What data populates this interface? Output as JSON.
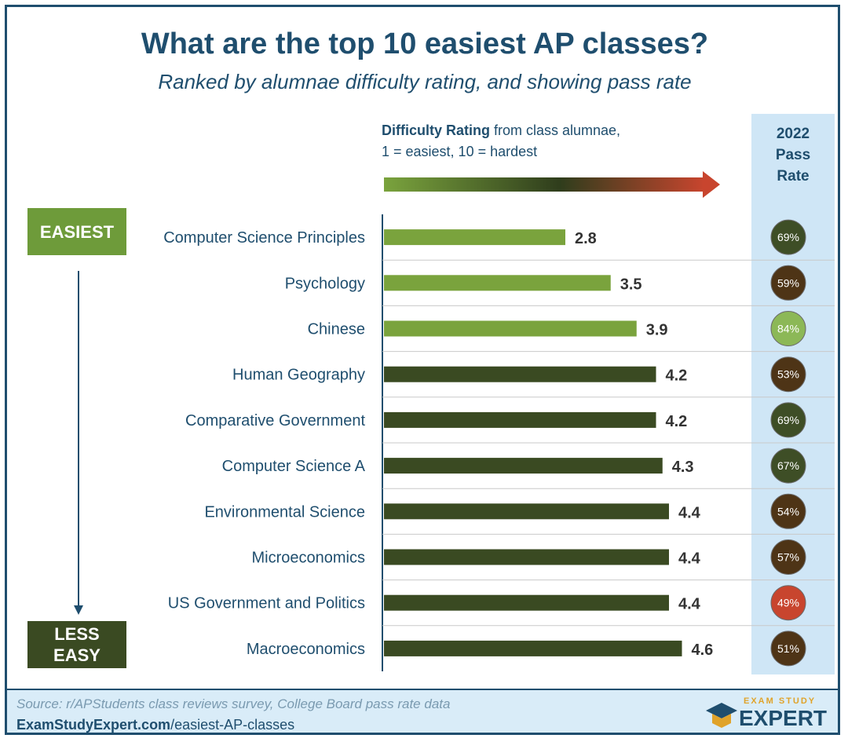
{
  "title": "What are the top 10 easiest AP classes?",
  "subtitle": "Ranked by alumnae difficulty rating, and showing pass rate",
  "legend": {
    "bold": "Difficulty Rating",
    "rest": " from class alumnae,",
    "line2": "1 = easiest, 10 = hardest"
  },
  "pass_header": [
    "2022",
    "Pass",
    "Rate"
  ],
  "tags": {
    "easiest": "EASIEST",
    "less_easy_1": "LESS",
    "less_easy_2": "EASY"
  },
  "chart_data": {
    "type": "bar",
    "orientation": "horizontal",
    "categories": [
      "Computer Science Principles",
      "Psychology",
      "Chinese",
      "Human Geography",
      "Comparative Government",
      "Computer Science A",
      "Environmental Science",
      "Microeconomics",
      "US Government and Politics",
      "Macroeconomics"
    ],
    "values": [
      2.8,
      3.5,
      3.9,
      4.2,
      4.2,
      4.3,
      4.4,
      4.4,
      4.4,
      4.6
    ],
    "value_labels": [
      "2.8",
      "3.5",
      "3.9",
      "4.2",
      "4.2",
      "4.3",
      "4.4",
      "4.4",
      "4.4",
      "4.6"
    ],
    "pass_rate": [
      "69%",
      "59%",
      "84%",
      "53%",
      "69%",
      "67%",
      "54%",
      "57%",
      "49%",
      "51%"
    ],
    "bar_colors": [
      "#7aa33d",
      "#7aa33d",
      "#7aa33d",
      "#3a4a22",
      "#3a4a22",
      "#3a4a22",
      "#3a4a22",
      "#3a4a22",
      "#3a4a22",
      "#3a4a22"
    ],
    "pass_colors": [
      "#3e4e26",
      "#4e3416",
      "#8cb857",
      "#4e3416",
      "#3e4e26",
      "#3e4e26",
      "#4e3416",
      "#4e3416",
      "#c8452e",
      "#4e3416"
    ],
    "xlim": [
      0,
      6.5
    ],
    "grid": false
  },
  "footer": {
    "source": "Source: r/APStudents class reviews survey, College Board pass rate data",
    "site_bold": "ExamStudyExpert.com",
    "site_rest": "/easiest-AP-classes",
    "logo_top": "EXAM STUDY",
    "logo_main": "EXPERT"
  },
  "colors": {
    "accent": "#1f4e6e",
    "easy_green": "#7aa33d",
    "dark_green": "#3a4a22",
    "red": "#c8452e"
  }
}
